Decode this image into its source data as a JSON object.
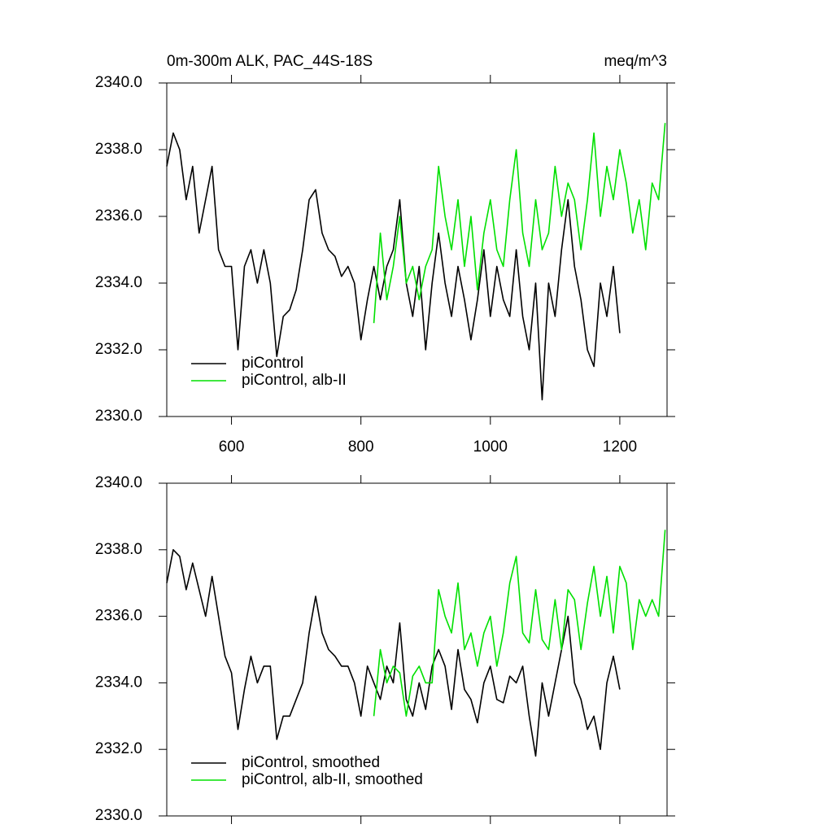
{
  "chart_data": [
    {
      "type": "line",
      "title": "0m-300m ALK, PAC_44S-18S",
      "units": "meq/m^3",
      "xlim": [
        500,
        1273
      ],
      "ylim": [
        2330,
        2340
      ],
      "xticks": [
        600,
        800,
        1000,
        1200
      ],
      "show_xtick_labels": true,
      "yticks": [
        {
          "value": 2330,
          "label": "2330.0"
        },
        {
          "value": 2332,
          "label": "2332.0"
        },
        {
          "value": 2334,
          "label": "2334.0"
        },
        {
          "value": 2336,
          "label": "2336.0"
        },
        {
          "value": 2338,
          "label": "2338.0"
        },
        {
          "value": 2340,
          "label": "2340.0"
        }
      ],
      "legend": "lower left",
      "series": [
        {
          "name": "piControl",
          "color": "#000000",
          "x": [
            500,
            510,
            520,
            530,
            540,
            550,
            560,
            570,
            580,
            590,
            600,
            610,
            620,
            630,
            640,
            650,
            660,
            670,
            680,
            690,
            700,
            710,
            720,
            730,
            740,
            750,
            760,
            770,
            780,
            790,
            800,
            810,
            820,
            830,
            840,
            850,
            860,
            870,
            880,
            890,
            900,
            910,
            920,
            930,
            940,
            950,
            960,
            970,
            980,
            990,
            1000,
            1010,
            1020,
            1030,
            1040,
            1050,
            1060,
            1070,
            1080,
            1090,
            1100,
            1110,
            1120,
            1130,
            1140,
            1150,
            1160,
            1170,
            1180,
            1190,
            1200
          ],
          "values": [
            2337.5,
            2338.5,
            2338.0,
            2336.5,
            2337.5,
            2335.5,
            2336.5,
            2337.5,
            2335.0,
            2334.5,
            2334.5,
            2332.0,
            2334.5,
            2335.0,
            2334.0,
            2335.0,
            2334.0,
            2331.8,
            2333.0,
            2333.2,
            2333.8,
            2335.0,
            2336.5,
            2336.8,
            2335.5,
            2335.0,
            2334.8,
            2334.2,
            2334.5,
            2334.0,
            2332.3,
            2333.5,
            2334.5,
            2333.5,
            2334.5,
            2335.0,
            2336.5,
            2334.0,
            2333.0,
            2334.5,
            2332.0,
            2334.0,
            2335.5,
            2334.0,
            2333.0,
            2334.5,
            2333.5,
            2332.3,
            2333.5,
            2335.0,
            2333.0,
            2334.5,
            2333.5,
            2333.0,
            2335.0,
            2333.0,
            2332.0,
            2334.0,
            2330.5,
            2334.0,
            2333.0,
            2335.0,
            2336.5,
            2334.5,
            2333.5,
            2332.0,
            2331.5,
            2334.0,
            2333.0,
            2334.5,
            2332.5
          ]
        },
        {
          "name": "piControl, alb-II",
          "color": "#00e000",
          "x": [
            820,
            830,
            840,
            850,
            860,
            870,
            880,
            890,
            900,
            910,
            920,
            930,
            940,
            950,
            960,
            970,
            980,
            990,
            1000,
            1010,
            1020,
            1030,
            1040,
            1050,
            1060,
            1070,
            1080,
            1090,
            1100,
            1110,
            1120,
            1130,
            1140,
            1150,
            1160,
            1170,
            1180,
            1190,
            1200,
            1210,
            1220,
            1230,
            1240,
            1250,
            1260,
            1270
          ],
          "values": [
            2332.8,
            2335.5,
            2333.5,
            2334.5,
            2336.0,
            2334.0,
            2334.5,
            2333.5,
            2334.5,
            2335.0,
            2337.5,
            2336.0,
            2335.0,
            2336.5,
            2334.5,
            2336.0,
            2333.8,
            2335.5,
            2336.5,
            2335.0,
            2334.5,
            2336.5,
            2338.0,
            2335.5,
            2334.5,
            2336.5,
            2335.0,
            2335.5,
            2337.5,
            2336.0,
            2337.0,
            2336.5,
            2335.0,
            2336.5,
            2338.5,
            2336.0,
            2337.5,
            2336.5,
            2338.0,
            2337.0,
            2335.5,
            2336.5,
            2335.0,
            2337.0,
            2336.5,
            2338.8
          ]
        }
      ]
    },
    {
      "type": "line",
      "xlim": [
        500,
        1273
      ],
      "ylim": [
        2330,
        2340
      ],
      "xticks": [
        600,
        800,
        1000,
        1200
      ],
      "show_xtick_labels": false,
      "yticks": [
        {
          "value": 2330,
          "label": "2330.0"
        },
        {
          "value": 2332,
          "label": "2332.0"
        },
        {
          "value": 2334,
          "label": "2334.0"
        },
        {
          "value": 2336,
          "label": "2336.0"
        },
        {
          "value": 2338,
          "label": "2338.0"
        },
        {
          "value": 2340,
          "label": "2340.0"
        }
      ],
      "legend": "lower left",
      "series": [
        {
          "name": "piControl, smoothed",
          "color": "#000000",
          "x": [
            500,
            510,
            520,
            530,
            540,
            550,
            560,
            570,
            580,
            590,
            600,
            610,
            620,
            630,
            640,
            650,
            660,
            670,
            680,
            690,
            700,
            710,
            720,
            730,
            740,
            750,
            760,
            770,
            780,
            790,
            800,
            810,
            820,
            830,
            840,
            850,
            860,
            870,
            880,
            890,
            900,
            910,
            920,
            930,
            940,
            950,
            960,
            970,
            980,
            990,
            1000,
            1010,
            1020,
            1030,
            1040,
            1050,
            1060,
            1070,
            1080,
            1090,
            1100,
            1110,
            1120,
            1130,
            1140,
            1150,
            1160,
            1170,
            1180,
            1190,
            1200
          ],
          "values": [
            2337.0,
            2338.0,
            2337.8,
            2336.8,
            2337.6,
            2336.8,
            2336.0,
            2337.2,
            2336.0,
            2334.8,
            2334.3,
            2332.6,
            2333.8,
            2334.8,
            2334.0,
            2334.5,
            2334.5,
            2332.3,
            2333.0,
            2333.0,
            2333.5,
            2334.0,
            2335.5,
            2336.6,
            2335.5,
            2335.0,
            2334.8,
            2334.5,
            2334.5,
            2334.0,
            2333.0,
            2334.5,
            2334.0,
            2333.5,
            2334.5,
            2334.0,
            2335.8,
            2333.5,
            2333.0,
            2334.0,
            2333.2,
            2334.5,
            2335.0,
            2334.5,
            2333.2,
            2335.0,
            2333.8,
            2333.5,
            2332.8,
            2334.0,
            2334.5,
            2333.5,
            2333.4,
            2334.2,
            2334.0,
            2334.5,
            2333.0,
            2331.8,
            2334.0,
            2333.0,
            2334.0,
            2335.0,
            2336.0,
            2334.0,
            2333.5,
            2332.6,
            2333.0,
            2332.0,
            2334.0,
            2334.8,
            2333.8
          ]
        },
        {
          "name": "piControl, alb-II, smoothed",
          "color": "#00e000",
          "x": [
            820,
            830,
            840,
            850,
            860,
            870,
            880,
            890,
            900,
            910,
            920,
            930,
            940,
            950,
            960,
            970,
            980,
            990,
            1000,
            1010,
            1020,
            1030,
            1040,
            1050,
            1060,
            1070,
            1080,
            1090,
            1100,
            1110,
            1120,
            1130,
            1140,
            1150,
            1160,
            1170,
            1180,
            1190,
            1200,
            1210,
            1220,
            1230,
            1240,
            1250,
            1260,
            1270
          ],
          "values": [
            2333.0,
            2335.0,
            2334.0,
            2334.5,
            2334.3,
            2333.0,
            2334.2,
            2334.5,
            2334.0,
            2334.0,
            2336.8,
            2336.0,
            2335.5,
            2337.0,
            2335.0,
            2335.5,
            2334.5,
            2335.5,
            2336.0,
            2334.5,
            2335.5,
            2337.0,
            2337.8,
            2335.5,
            2335.2,
            2336.8,
            2335.3,
            2335.0,
            2336.5,
            2335.0,
            2336.8,
            2336.5,
            2335.0,
            2336.4,
            2337.5,
            2336.0,
            2337.2,
            2335.5,
            2337.5,
            2337.0,
            2335.0,
            2336.5,
            2336.0,
            2336.5,
            2336.0,
            2338.6
          ]
        }
      ]
    }
  ]
}
